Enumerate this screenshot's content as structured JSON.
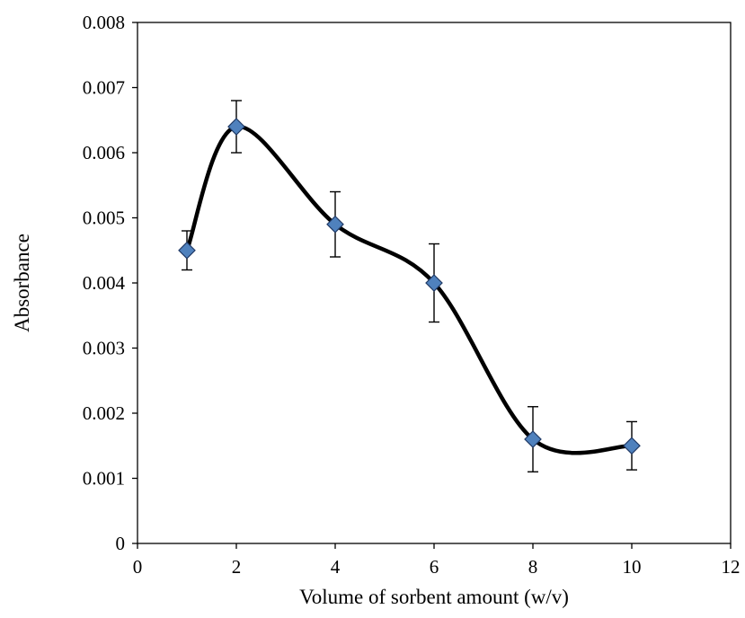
{
  "chart_data": {
    "type": "scatter",
    "title": "",
    "xlabel": "Volume of sorbent amount (w/v)",
    "ylabel": "Absorbance",
    "xlim": [
      0,
      12
    ],
    "ylim": [
      0,
      0.008
    ],
    "xticks": [
      "0",
      "2",
      "4",
      "6",
      "8",
      "10",
      "12"
    ],
    "yticks": [
      "0",
      "0.001",
      "0.002",
      "0.003",
      "0.004",
      "0.005",
      "0.006",
      "0.007",
      "0.008"
    ],
    "grid": false,
    "legend": "none",
    "smooth_line": true,
    "marker": "diamond",
    "colors": {
      "marker_fill": "#4f81bd",
      "marker_edge": "#1f3864",
      "line": "#000000",
      "axis": "#000000"
    },
    "series": [
      {
        "x": [
          1,
          2,
          4,
          6,
          8,
          10
        ],
        "y": [
          0.0045,
          0.0064,
          0.0049,
          0.004,
          0.0016,
          0.0015
        ],
        "error": [
          0.0003,
          0.0004,
          0.0005,
          0.0006,
          0.0005,
          0.00037
        ]
      }
    ]
  }
}
